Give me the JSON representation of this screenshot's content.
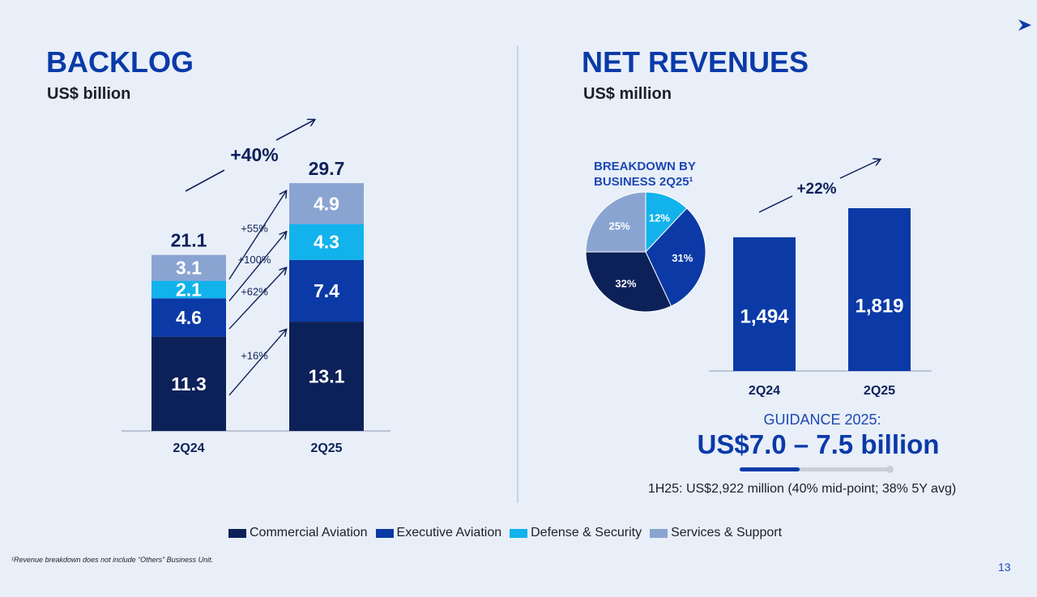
{
  "left": {
    "title": "BACKLOG",
    "subtitle": "US$ billion"
  },
  "right": {
    "title": "NET REVENUES",
    "subtitle": "US$ million"
  },
  "colors": {
    "commercial": "#0d2159",
    "executive": "#0b3aa6",
    "defense": "#12b2ec",
    "services": "#8aa4d2",
    "revenue_bar": "#0b3aa6",
    "title": "#0a3aa8"
  },
  "chart_data": [
    {
      "type": "bar",
      "stacked": true,
      "categories": [
        "2Q24",
        "2Q25"
      ],
      "series": [
        {
          "name": "Commercial Aviation",
          "values": [
            11.3,
            13.1
          ]
        },
        {
          "name": "Executive Aviation",
          "values": [
            4.6,
            7.4
          ]
        },
        {
          "name": "Defense & Security",
          "values": [
            2.1,
            4.3
          ]
        },
        {
          "name": "Services & Support",
          "values": [
            3.1,
            4.9
          ]
        }
      ],
      "totals": [
        "21.1",
        "29.7"
      ],
      "value_labels": [
        [
          "11.3",
          "13.1"
        ],
        [
          "4.6",
          "7.4"
        ],
        [
          "2.1",
          "4.3"
        ],
        [
          "3.1",
          "4.9"
        ]
      ],
      "growth_labels": [
        "+16%",
        "+62%",
        "+100%",
        "+55%"
      ],
      "total_growth_label": "+40%"
    },
    {
      "type": "pie",
      "title": "BREAKDOWN BY BUSINESS 2Q25¹",
      "slices": [
        {
          "name": "Defense & Security",
          "value": 12,
          "label": "12%"
        },
        {
          "name": "Executive Aviation",
          "value": 31,
          "label": "31%"
        },
        {
          "name": "Commercial Aviation",
          "value": 32,
          "label": "32%"
        },
        {
          "name": "Services & Support",
          "value": 25,
          "label": "25%"
        }
      ]
    },
    {
      "type": "bar",
      "categories": [
        "2Q24",
        "2Q25"
      ],
      "values": [
        1494,
        1819
      ],
      "value_labels": [
        "1,494",
        "1,819"
      ],
      "growth_label": "+22%"
    }
  ],
  "guidance": {
    "label": "GUIDANCE 2025:",
    "value": "US$7.0 – 7.5 billion",
    "progress": 0.4,
    "h1_text": "1H25: US$2,922 million (40% mid-point; 38% 5Y avg)"
  },
  "legend": [
    {
      "label": "Commercial Aviation",
      "color": "#0d2159"
    },
    {
      "label": "Executive Aviation",
      "color": "#0b3aa6"
    },
    {
      "label": "Defense & Security",
      "color": "#12b2ec"
    },
    {
      "label": "Services & Support",
      "color": "#8aa4d2"
    }
  ],
  "footnote": "¹Revenue breakdown does not include “Others” Business Unit.",
  "page_number": "13",
  "icons": {
    "corner": "chevron-right-icon"
  }
}
